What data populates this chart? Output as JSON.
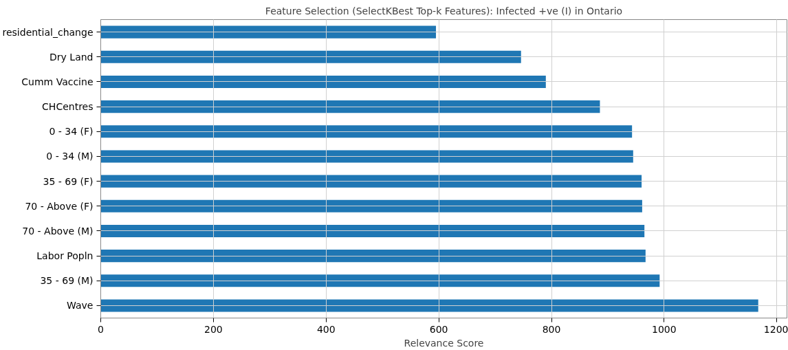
{
  "chart_data": {
    "type": "bar",
    "orientation": "horizontal",
    "title": "Feature Selection (SelectKBest Top-k Features): Infected +ve (I) in Ontario",
    "xlabel": "Relevance Score",
    "categories": [
      "residential_change",
      "Dry Land",
      "Cumm Vaccine",
      "CHCentres",
      "0 - 34 (F)",
      "0 - 34 (M)",
      "35 - 69 (F)",
      "70 - Above (F)",
      "70 - Above (M)",
      "Labor Popln",
      "35 - 69 (M)",
      "Wave"
    ],
    "values": [
      595,
      746,
      790,
      886,
      943,
      945,
      960,
      961,
      965,
      967,
      992,
      1167
    ],
    "color": "#1f77b4",
    "xlim": [
      0,
      1218
    ],
    "xticks": [
      0,
      200,
      400,
      600,
      800,
      1000,
      1200
    ],
    "grid": true
  }
}
